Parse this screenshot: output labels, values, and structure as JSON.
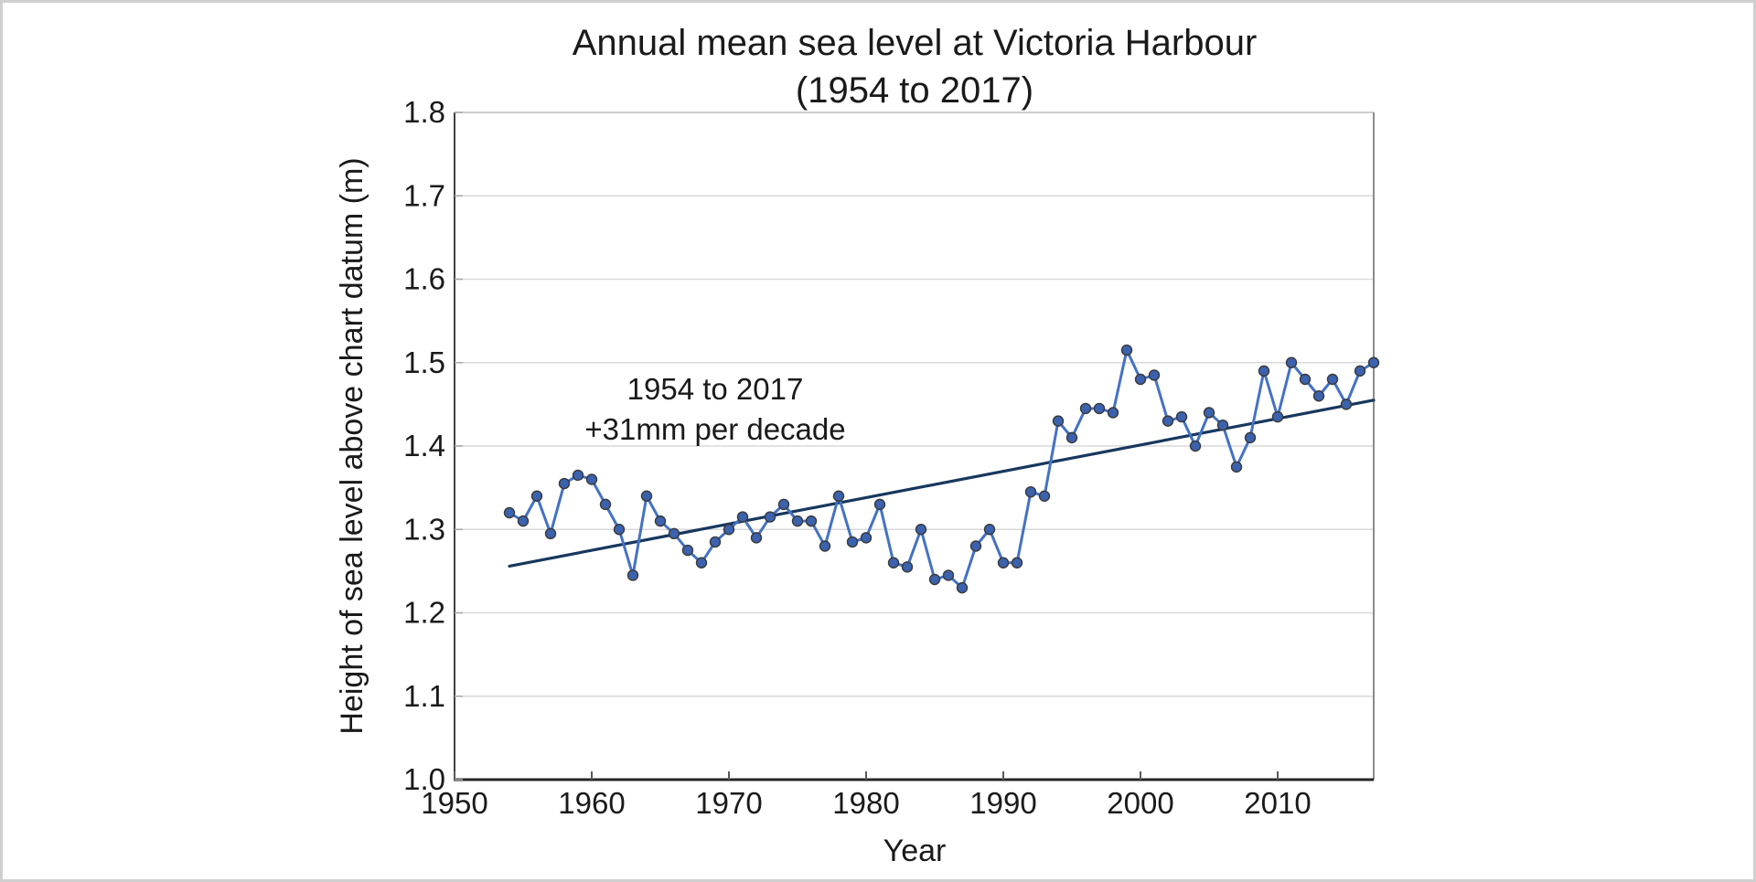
{
  "frame": {
    "background": "#ffffff",
    "border_color": "#cfcfcf"
  },
  "chart_data": {
    "type": "line",
    "title_line1": "Annual mean sea level at Victoria Harbour",
    "title_line2": "(1954 to 2017)",
    "xlabel": "Year",
    "ylabel": "Height of sea level above chart datum (m)",
    "x_range": [
      1950,
      2017
    ],
    "y_range": [
      1.0,
      1.8
    ],
    "x_ticks": [
      1950,
      1960,
      1970,
      1980,
      1990,
      2000,
      2010
    ],
    "y_ticks": [
      "1.0",
      "1.1",
      "1.2",
      "1.3",
      "1.4",
      "1.5",
      "1.6",
      "1.7",
      "1.8"
    ],
    "grid": "horizontal",
    "legend": "none",
    "series": [
      {
        "name": "Annual mean sea level",
        "years": [
          1954,
          1955,
          1956,
          1957,
          1958,
          1959,
          1960,
          1961,
          1962,
          1963,
          1964,
          1965,
          1966,
          1967,
          1968,
          1969,
          1970,
          1971,
          1972,
          1973,
          1974,
          1975,
          1976,
          1977,
          1978,
          1979,
          1980,
          1981,
          1982,
          1983,
          1984,
          1985,
          1986,
          1987,
          1988,
          1989,
          1990,
          1991,
          1992,
          1993,
          1994,
          1995,
          1996,
          1997,
          1998,
          1999,
          2000,
          2001,
          2002,
          2003,
          2004,
          2005,
          2006,
          2007,
          2008,
          2009,
          2010,
          2011,
          2012,
          2013,
          2014,
          2015,
          2016,
          2017
        ],
        "values": [
          1.32,
          1.31,
          1.34,
          1.295,
          1.355,
          1.365,
          1.36,
          1.33,
          1.3,
          1.245,
          1.34,
          1.31,
          1.295,
          1.275,
          1.26,
          1.285,
          1.3,
          1.315,
          1.29,
          1.315,
          1.33,
          1.31,
          1.31,
          1.28,
          1.34,
          1.285,
          1.29,
          1.33,
          1.26,
          1.255,
          1.3,
          1.24,
          1.245,
          1.23,
          1.28,
          1.3,
          1.26,
          1.26,
          1.345,
          1.34,
          1.43,
          1.41,
          1.445,
          1.445,
          1.44,
          1.515,
          1.48,
          1.485,
          1.43,
          1.435,
          1.4,
          1.44,
          1.425,
          1.375,
          1.41,
          1.49,
          1.435,
          1.5,
          1.48,
          1.46,
          1.48,
          1.45,
          1.49,
          1.5
        ]
      }
    ],
    "trendline": {
      "start_year": 1954,
      "start_value": 1.256,
      "end_year": 2017,
      "end_value": 1.455
    },
    "annotation": {
      "line1": "1954 to 2017",
      "line2": "+31mm per decade"
    },
    "colors": {
      "series_line": "#4472C4",
      "marker_fill": "#3B62AE",
      "marker_stroke": "#3A3A3A",
      "trend_line": "#17375E",
      "gridline": "#D9D9D9",
      "plot_border_light": "#BFBFBF",
      "axis_dark": "#262626",
      "text": "#1a1a1a"
    }
  }
}
